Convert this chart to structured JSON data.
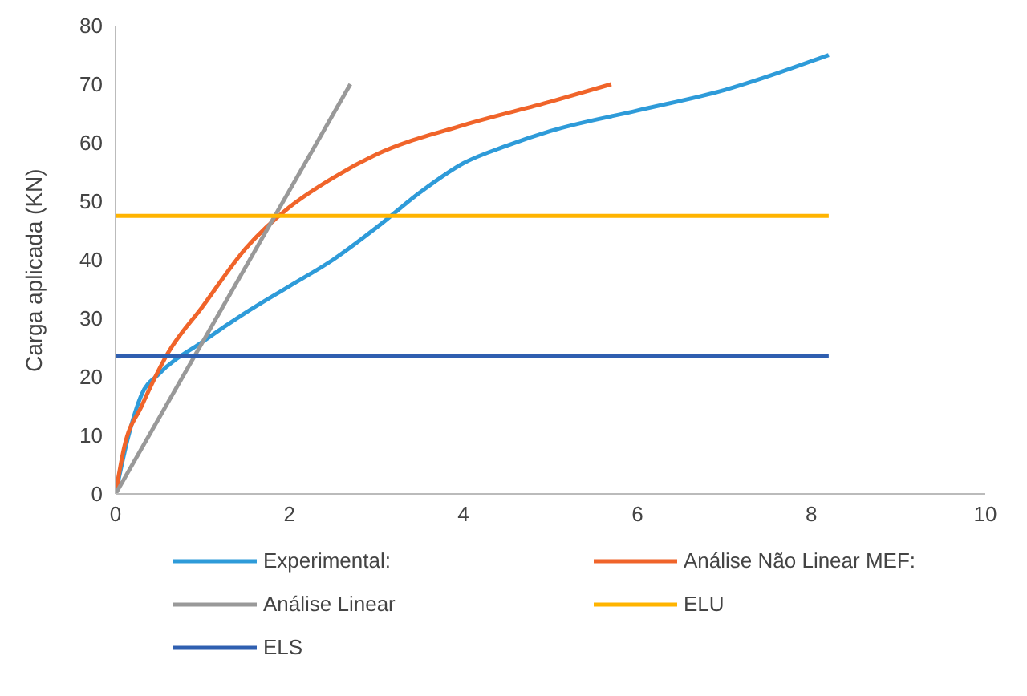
{
  "chart_data": {
    "type": "line",
    "ylabel": "Carga aplicada (KN)",
    "xlim": [
      0,
      10
    ],
    "xticks": [
      0,
      2,
      4,
      6,
      8,
      10
    ],
    "ylim": [
      0,
      80
    ],
    "yticks": [
      0,
      10,
      20,
      30,
      40,
      50,
      60,
      70,
      80
    ],
    "grid": false,
    "legend": "bottom",
    "marker": "none",
    "line_style": "solid",
    "series": [
      {
        "name": "Experimental:",
        "color": "#2e9bd9",
        "x": [
          0,
          0.15,
          0.3,
          0.5,
          1,
          1.5,
          2,
          2.5,
          3,
          3.5,
          4,
          4.5,
          5,
          6,
          7,
          8.2
        ],
        "values": [
          0,
          10,
          17,
          20.5,
          26,
          31,
          35.5,
          40,
          45.5,
          51.5,
          56.5,
          59.5,
          62,
          65.5,
          69,
          75
        ]
      },
      {
        "name": "Análise Não Linear MEF:",
        "color": "#f0642a",
        "x": [
          0,
          0.1,
          0.3,
          0.6,
          1,
          1.5,
          2,
          2.5,
          3,
          4,
          5,
          5.7
        ],
        "values": [
          0,
          8,
          15,
          24,
          32,
          42,
          49,
          54,
          58,
          63,
          67,
          70
        ]
      },
      {
        "name": "Análise Linear",
        "color": "#999999",
        "x": [
          0,
          2.7
        ],
        "values": [
          0,
          70
        ]
      },
      {
        "name": "ELU",
        "color": "#ffb400",
        "x": [
          0,
          8.2
        ],
        "values": [
          47.5,
          47.5
        ]
      },
      {
        "name": "ELS",
        "color": "#2f5fb0",
        "x": [
          0,
          8.2
        ],
        "values": [
          23.5,
          23.5
        ]
      }
    ]
  }
}
